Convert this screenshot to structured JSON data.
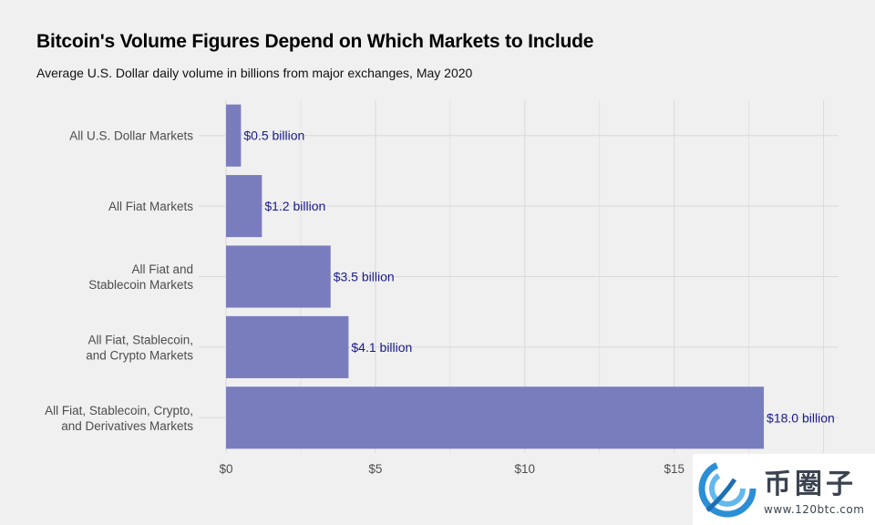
{
  "chart_data": {
    "type": "bar",
    "orientation": "horizontal",
    "title": "Bitcoin's Volume Figures Depend on Which Markets to Include",
    "subtitle": "Average U.S. Dollar daily volume in billions from major exchanges, May 2020",
    "categories": [
      [
        "All U.S. Dollar Markets"
      ],
      [
        "All Fiat Markets"
      ],
      [
        "All Fiat and",
        "Stablecoin Markets"
      ],
      [
        "All Fiat, Stablecoin,",
        "and Crypto Markets"
      ],
      [
        "All Fiat, Stablecoin, Crypto,",
        "and Derivatives Markets"
      ]
    ],
    "values": [
      0.5,
      1.2,
      3.5,
      4.1,
      18.0
    ],
    "data_labels": [
      "$0.5 billion",
      "$1.2 billion",
      "$3.5 billion",
      "$4.1 billion",
      "$18.0 billion"
    ],
    "x_ticks": [
      {
        "value": 0,
        "label": "$0"
      },
      {
        "value": 5,
        "label": "$5"
      },
      {
        "value": 10,
        "label": "$10"
      },
      {
        "value": 15,
        "label": "$15"
      }
    ],
    "xlim": [
      0,
      20.5
    ],
    "grid": true,
    "colors": {
      "bar": "#7a7dbd",
      "data_label": "#1a1a8c",
      "grid": "#d9d9d9",
      "background": "#f0f0f0",
      "tick_label": "#4d4d4d"
    }
  },
  "watermark": {
    "name": "币圈子",
    "url": "www.120btc.com"
  }
}
